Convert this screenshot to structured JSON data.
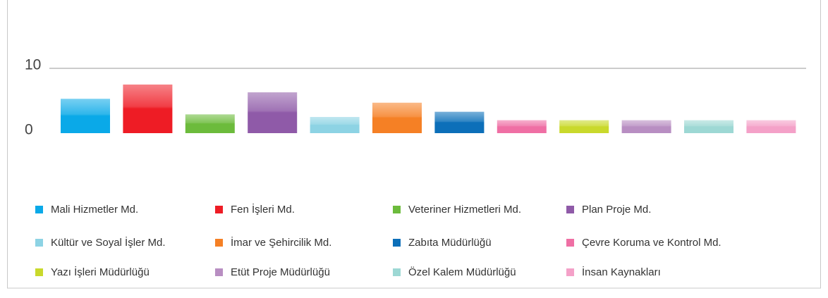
{
  "chart_data": {
    "type": "bar",
    "series": [
      {
        "name": "Mali Hizmetler Md.",
        "color": "#0aa9e8",
        "values": [
          5.3
        ]
      },
      {
        "name": "Fen İşleri Md.",
        "color": "#ee1c25",
        "values": [
          7.5
        ]
      },
      {
        "name": "Veteriner Hizmetleri Md.",
        "color": "#6cbb3c",
        "values": [
          2.9
        ]
      },
      {
        "name": "Plan Proje Md.",
        "color": "#8f5aa8",
        "values": [
          6.3
        ]
      },
      {
        "name": "Kültür ve Soyal İşler Md.",
        "color": "#8dd3e4",
        "values": [
          2.5
        ]
      },
      {
        "name": "İmar ve Şehircilik Md.",
        "color": "#f58025",
        "values": [
          4.7
        ]
      },
      {
        "name": "Zabıta Müdürlüğü",
        "color": "#0c6fb9",
        "values": [
          3.3
        ]
      },
      {
        "name": "Çevre Koruma ve Kontrol Md.",
        "color": "#ef6fa4",
        "values": [
          2.0
        ]
      },
      {
        "name": "Yazı İşleri Müdürlüğü",
        "color": "#c9d92c",
        "values": [
          2.0
        ]
      },
      {
        "name": "Etüt Proje Müdürlüğü",
        "color": "#b88ec2",
        "values": [
          2.0
        ]
      },
      {
        "name": "Özel Kalem Müdürlüğü",
        "color": "#9dd8d4",
        "values": [
          2.0
        ]
      },
      {
        "name": "İnsan Kaynakları",
        "color": "#f4a1c8",
        "values": [
          2.0
        ]
      }
    ],
    "ylim": [
      0,
      10
    ],
    "yticks": [
      0,
      10
    ],
    "grid": true,
    "legend": "bottom"
  }
}
